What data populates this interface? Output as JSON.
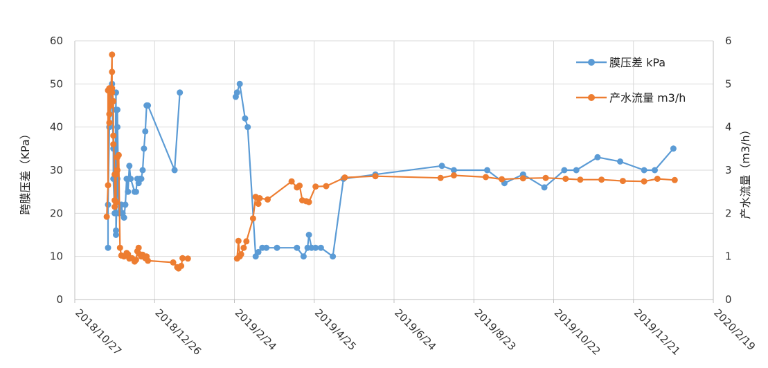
{
  "chart_data": {
    "type": "line",
    "x_axis": {
      "type": "date",
      "min": "2018-10-27",
      "max": "2020-02-19",
      "tick_labels": [
        "2018/10/27",
        "2018/12/26",
        "2019/2/24",
        "2019/4/25",
        "2019/6/24",
        "2019/8/23",
        "2019/10/22",
        "2019/12/21",
        "2020/2/19"
      ],
      "vertical_grid": true
    },
    "y_left": {
      "label": "跨膜压差（KPa）",
      "min": 0,
      "max": 60,
      "ticks": [
        "0",
        "10",
        "20",
        "30",
        "40",
        "50",
        "60"
      ]
    },
    "y_right": {
      "label": "产水流量（m3/h）",
      "min": 0,
      "max": 6,
      "ticks": [
        "0",
        "1",
        "2",
        "3",
        "4",
        "5",
        "6"
      ]
    },
    "grid": true,
    "legend_position": "top-right",
    "series": [
      {
        "name": "膜压差 kPa",
        "axis": "left",
        "color": "#5B9BD5",
        "points": [
          [
            "2018-11-21",
            12
          ],
          [
            "2018-11-21",
            22
          ],
          [
            "2018-11-22",
            40
          ],
          [
            "2018-11-23",
            45
          ],
          [
            "2018-11-23",
            48
          ],
          [
            "2018-11-24",
            50
          ],
          [
            "2018-11-24",
            46
          ],
          [
            "2018-11-25",
            35
          ],
          [
            "2018-11-25",
            28
          ],
          [
            "2018-11-26",
            20
          ],
          [
            "2018-11-27",
            48
          ],
          [
            "2018-11-27",
            44
          ],
          [
            "2018-11-27",
            16
          ],
          [
            "2018-11-27",
            15
          ],
          [
            "2018-11-28",
            28
          ],
          [
            "2018-11-28",
            40
          ],
          [
            "2018-11-28",
            44
          ],
          [
            "2018-11-29",
            20
          ],
          [
            "2018-11-30",
            20
          ],
          [
            "2018-12-01",
            22
          ],
          [
            "2018-12-02",
            20
          ],
          [
            "2018-12-03",
            19
          ],
          [
            "2018-12-04",
            22
          ],
          [
            "2018-12-05",
            28
          ],
          [
            "2018-12-06",
            25
          ],
          [
            "2018-12-07",
            31
          ],
          [
            "2018-12-08",
            28
          ],
          [
            "2018-12-11",
            25
          ],
          [
            "2018-12-12",
            25
          ],
          [
            "2018-12-13",
            28
          ],
          [
            "2018-12-14",
            27
          ],
          [
            "2018-12-15",
            28
          ],
          [
            "2018-12-16",
            28
          ],
          [
            "2018-12-17",
            30
          ],
          [
            "2018-12-18",
            35
          ],
          [
            "2018-12-19",
            39
          ],
          [
            "2018-12-20",
            45
          ],
          [
            "2018-12-21",
            45
          ],
          [
            "2019-01-10",
            30
          ],
          [
            "2019-01-14",
            48
          ],
          null,
          [
            "2019-02-25",
            47
          ],
          [
            "2019-02-26",
            48
          ],
          [
            "2019-02-28",
            50
          ],
          [
            "2019-03-04",
            42
          ],
          [
            "2019-03-06",
            40
          ],
          [
            "2019-03-12",
            10
          ],
          [
            "2019-03-14",
            11
          ],
          [
            "2019-03-17",
            12
          ],
          [
            "2019-03-20",
            12
          ],
          [
            "2019-03-28",
            12
          ],
          [
            "2019-04-12",
            12
          ],
          [
            "2019-04-17",
            10
          ],
          [
            "2019-04-20",
            12
          ],
          [
            "2019-04-21",
            15
          ],
          [
            "2019-04-23",
            12
          ],
          [
            "2019-04-26",
            12
          ],
          [
            "2019-04-30",
            12
          ],
          [
            "2019-05-09",
            10
          ],
          [
            "2019-05-17",
            28
          ],
          [
            "2019-06-10",
            29
          ],
          [
            "2019-07-30",
            31
          ],
          [
            "2019-08-08",
            30
          ],
          [
            "2019-09-02",
            30
          ],
          [
            "2019-09-15",
            27
          ],
          [
            "2019-09-29",
            29
          ],
          [
            "2019-10-15",
            26
          ],
          [
            "2019-10-30",
            30
          ],
          [
            "2019-11-08",
            30
          ],
          [
            "2019-11-24",
            33
          ],
          [
            "2019-12-11",
            32
          ],
          [
            "2019-12-29",
            30
          ],
          [
            "2020-01-06",
            30
          ],
          [
            "2020-01-20",
            35
          ]
        ]
      },
      {
        "name": "产水流量 m3/h",
        "axis": "right",
        "color": "#ED7D31",
        "points": [
          [
            "2018-11-20",
            1.92
          ],
          [
            "2018-11-21",
            2.65
          ],
          [
            "2018-11-21",
            4.85
          ],
          [
            "2018-11-22",
            4.9
          ],
          [
            "2018-11-22",
            4.1
          ],
          [
            "2018-11-22",
            4.3
          ],
          [
            "2018-11-23",
            4.5
          ],
          [
            "2018-11-24",
            5.68
          ],
          [
            "2018-11-24",
            5.28
          ],
          [
            "2018-11-24",
            4.8
          ],
          [
            "2018-11-24",
            4.9
          ],
          [
            "2018-11-25",
            4.6
          ],
          [
            "2018-11-25",
            3.6
          ],
          [
            "2018-11-25",
            3.8
          ],
          [
            "2018-11-26",
            2.9
          ],
          [
            "2018-11-26",
            2.3
          ],
          [
            "2018-11-26",
            2.15
          ],
          [
            "2018-11-27",
            2.25
          ],
          [
            "2018-11-27",
            2.9
          ],
          [
            "2018-11-28",
            3.0
          ],
          [
            "2018-11-28",
            3.3
          ],
          [
            "2018-11-29",
            3.35
          ],
          [
            "2018-11-30",
            1.2
          ],
          [
            "2018-12-01",
            1.02
          ],
          [
            "2018-12-03",
            1.0
          ],
          [
            "2018-12-05",
            1.08
          ],
          [
            "2018-12-06",
            1.05
          ],
          [
            "2018-12-07",
            0.95
          ],
          [
            "2018-12-09",
            0.96
          ],
          [
            "2018-12-11",
            0.88
          ],
          [
            "2018-12-12",
            0.92
          ],
          [
            "2018-12-13",
            1.12
          ],
          [
            "2018-12-14",
            1.2
          ],
          [
            "2018-12-15",
            1.05
          ],
          [
            "2018-12-16",
            1.0
          ],
          [
            "2018-12-17",
            1.04
          ],
          [
            "2018-12-18",
            1.0
          ],
          [
            "2018-12-19",
            0.96
          ],
          [
            "2018-12-20",
            1.0
          ],
          [
            "2018-12-21",
            0.9
          ],
          [
            "2019-01-09",
            0.86
          ],
          [
            "2019-01-12",
            0.75
          ],
          [
            "2019-01-13",
            0.72
          ],
          [
            "2019-01-15",
            0.78
          ],
          [
            "2019-01-16",
            0.96
          ],
          [
            "2019-01-20",
            0.95
          ],
          null,
          [
            "2019-02-26",
            0.95
          ],
          [
            "2019-02-27",
            1.36
          ],
          [
            "2019-02-28",
            1.0
          ],
          [
            "2019-03-01",
            1.05
          ],
          [
            "2019-03-03",
            1.2
          ],
          [
            "2019-03-05",
            1.35
          ],
          [
            "2019-03-10",
            1.88
          ],
          [
            "2019-03-12",
            2.38
          ],
          [
            "2019-03-14",
            2.22
          ],
          [
            "2019-03-15",
            2.35
          ],
          [
            "2019-03-21",
            2.32
          ],
          [
            "2019-04-08",
            2.74
          ],
          [
            "2019-04-12",
            2.6
          ],
          [
            "2019-04-14",
            2.64
          ],
          [
            "2019-04-16",
            2.3
          ],
          [
            "2019-04-19",
            2.28
          ],
          [
            "2019-04-21",
            2.26
          ],
          [
            "2019-04-26",
            2.62
          ],
          [
            "2019-05-04",
            2.63
          ],
          [
            "2019-05-18",
            2.83
          ],
          [
            "2019-06-10",
            2.86
          ],
          [
            "2019-07-29",
            2.82
          ],
          [
            "2019-08-08",
            2.88
          ],
          [
            "2019-09-01",
            2.84
          ],
          [
            "2019-09-13",
            2.79
          ],
          [
            "2019-09-29",
            2.81
          ],
          [
            "2019-10-16",
            2.82
          ],
          [
            "2019-10-31",
            2.8
          ],
          [
            "2019-11-11",
            2.78
          ],
          [
            "2019-11-27",
            2.78
          ],
          [
            "2019-12-13",
            2.75
          ],
          [
            "2019-12-29",
            2.74
          ],
          [
            "2020-01-08",
            2.8
          ],
          [
            "2020-01-21",
            2.77
          ]
        ]
      }
    ]
  }
}
